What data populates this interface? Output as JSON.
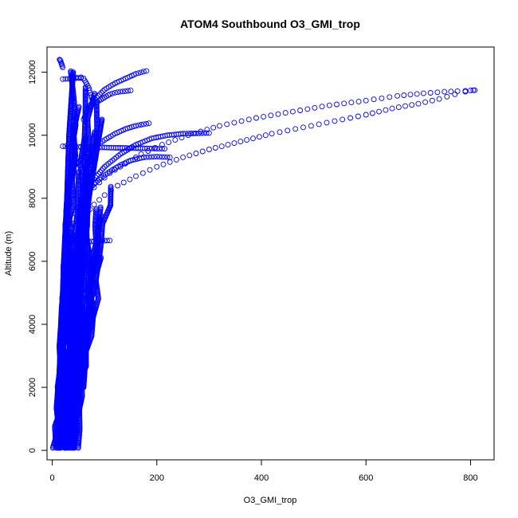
{
  "chart_data": {
    "type": "scatter",
    "title": "ATOM4 Southbound O3_GMI_trop",
    "xlabel": "O3_GMI_trop",
    "ylabel": "Altitude (m)",
    "xlim": [
      -10,
      845
    ],
    "ylim": [
      -300,
      12800
    ],
    "x_ticks": [
      0,
      200,
      400,
      600,
      800
    ],
    "y_ticks": [
      0,
      2000,
      4000,
      6000,
      8000,
      10000,
      12000
    ],
    "grid": false,
    "legend": "none",
    "marker": "open-circle",
    "point_color": "#0000ff",
    "series": [
      {
        "x": [
          20,
          22,
          25,
          30,
          35,
          40,
          45,
          55,
          70,
          90,
          110,
          140,
          170,
          210,
          260,
          320,
          390,
          460,
          530,
          600,
          660,
          710,
          750,
          775,
          790,
          800,
          808
        ],
        "y": [
          5000,
          5600,
          6100,
          6500,
          6900,
          7200,
          7500,
          7900,
          8200,
          8500,
          8800,
          9100,
          9400,
          9700,
          10000,
          10300,
          10550,
          10750,
          10950,
          11100,
          11250,
          11330,
          11380,
          11400,
          11410,
          11420,
          11430
        ]
      },
      {
        "x": [
          25,
          28,
          32,
          38,
          45,
          55,
          65,
          80,
          100,
          125,
          160,
          200,
          250,
          300,
          360,
          420,
          480,
          540,
          600,
          650,
          700,
          740,
          770,
          790,
          805
        ],
        "y": [
          4800,
          5400,
          5900,
          6400,
          6800,
          7200,
          7500,
          7800,
          8100,
          8400,
          8700,
          9000,
          9300,
          9550,
          9800,
          10050,
          10250,
          10450,
          10650,
          10850,
          11000,
          11150,
          11300,
          11380,
          11430
        ]
      },
      {
        "x": [
          60,
          70,
          85,
          100,
          120,
          140,
          160,
          175,
          180
        ],
        "y": [
          10500,
          10900,
          11200,
          11450,
          11650,
          11800,
          11950,
          12020,
          12040
        ]
      },
      {
        "x": [
          80,
          100,
          130,
          160,
          190,
          220,
          250,
          275,
          300
        ],
        "y": [
          8600,
          9000,
          9400,
          9700,
          9900,
          10000,
          10050,
          10060,
          10070
        ]
      },
      {
        "x": [
          70,
          90,
          110,
          130,
          150,
          175,
          200,
          225
        ],
        "y": [
          8300,
          8600,
          8850,
          9050,
          9200,
          9300,
          9320,
          9300
        ]
      },
      {
        "x": [
          20,
          40,
          60,
          80,
          100,
          130,
          160,
          190,
          215
        ],
        "y": [
          9650,
          9640,
          9630,
          9620,
          9610,
          9600,
          9590,
          9580,
          9570
        ]
      },
      {
        "x": [
          40,
          60,
          80,
          100,
          120,
          140,
          160,
          175,
          185
        ],
        "y": [
          9000,
          9300,
          9600,
          9850,
          10050,
          10200,
          10300,
          10350,
          10380
        ]
      },
      {
        "x": [
          60,
          70,
          80,
          90,
          100,
          110
        ],
        "y": [
          6600,
          6620,
          6640,
          6650,
          6655,
          6660
        ]
      },
      {
        "x": [
          40,
          50,
          60,
          70,
          75,
          80,
          90,
          100,
          110,
          120,
          130,
          140,
          150
        ],
        "y": [
          11850,
          11820,
          11800,
          11500,
          11200,
          11000,
          11100,
          11200,
          11300,
          11350,
          11380,
          11400,
          11420
        ]
      },
      {
        "x": [
          14,
          15,
          16,
          17,
          18,
          19,
          20
        ],
        "y": [
          12400,
          12380,
          12350,
          12300,
          12250,
          12200,
          12150
        ]
      },
      {
        "x": [
          20,
          30,
          40,
          50,
          55
        ],
        "y": [
          11780,
          11790,
          11800,
          11820,
          11840
        ]
      }
    ],
    "dense_core": {
      "x_range": [
        5,
        110
      ],
      "y_range": [
        50,
        12400
      ],
      "description_values": [
        {
          "x": [
            8,
            10,
            12,
            15,
            18,
            20,
            22,
            25,
            28,
            30,
            32,
            34,
            36,
            38,
            40
          ],
          "y": [
            150,
            1000,
            2000,
            3000,
            4000,
            5000,
            6000,
            7000,
            8000,
            9000,
            10000,
            10500,
            11000,
            11500,
            12000
          ]
        },
        {
          "x": [
            30,
            35,
            40,
            45,
            50,
            55,
            60,
            65,
            70,
            75,
            80,
            85,
            90,
            95
          ],
          "y": [
            100,
            1000,
            2000,
            3000,
            4000,
            5000,
            6000,
            7000,
            8000,
            8500,
            9000,
            9500,
            10000,
            10500
          ]
        },
        {
          "x": [
            40,
            42,
            44,
            46,
            48,
            50,
            52,
            55,
            58,
            60,
            63,
            66
          ],
          "y": [
            80,
            500,
            1200,
            2000,
            2800,
            3600,
            4400,
            5200,
            6000,
            6800,
            7600,
            8400
          ]
        },
        {
          "x": [
            60,
            62,
            64,
            66,
            68,
            70,
            72,
            75,
            78
          ],
          "y": [
            2000,
            2500,
            3000,
            3500,
            4000,
            4500,
            5000,
            5500,
            6000
          ]
        }
      ]
    }
  }
}
